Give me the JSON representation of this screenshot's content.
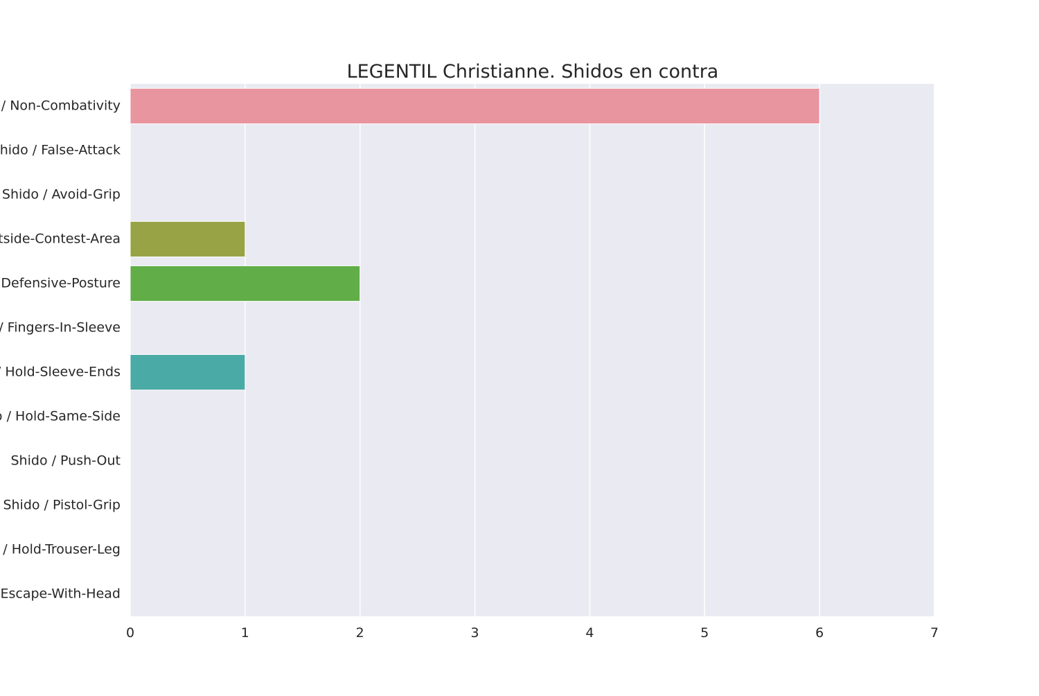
{
  "chart_data": {
    "type": "bar",
    "orientation": "horizontal",
    "title": "LEGENTIL Christianne. Shidos en contra",
    "xlabel": "",
    "ylabel": "",
    "xlim": [
      0,
      7
    ],
    "xticks": [
      0,
      1,
      2,
      3,
      4,
      5,
      6,
      7
    ],
    "grid": true,
    "categories": [
      "Shido / Non-Combativity",
      "Shido / False-Attack",
      "Shido / Avoid-Grip",
      "Shido / Outside-Contest-Area",
      "Shido / Defensive-Posture",
      "Shido / Fingers-In-Sleeve",
      "Shido / Hold-Sleeve-Ends",
      "Shido / Hold-Same-Side",
      "Shido / Push-Out",
      "Shido / Pistol-Grip",
      "Shido / Hold-Trouser-Leg",
      "Shido / Escape-With-Head"
    ],
    "values": [
      6,
      0,
      0,
      1,
      2,
      0,
      1,
      0,
      0,
      0,
      0,
      0
    ],
    "colors": [
      "#e8959f",
      "#e3a067",
      "#c4a946",
      "#98a346",
      "#61ad48",
      "#4eb286",
      "#4aaaa5",
      "#4ca4c1",
      "#7a9ee6",
      "#b48ee6",
      "#e07ed6",
      "#e888b6"
    ],
    "plot_background": "#eaeaf2",
    "grid_color": "#ffffff",
    "text_color": "#262626"
  }
}
